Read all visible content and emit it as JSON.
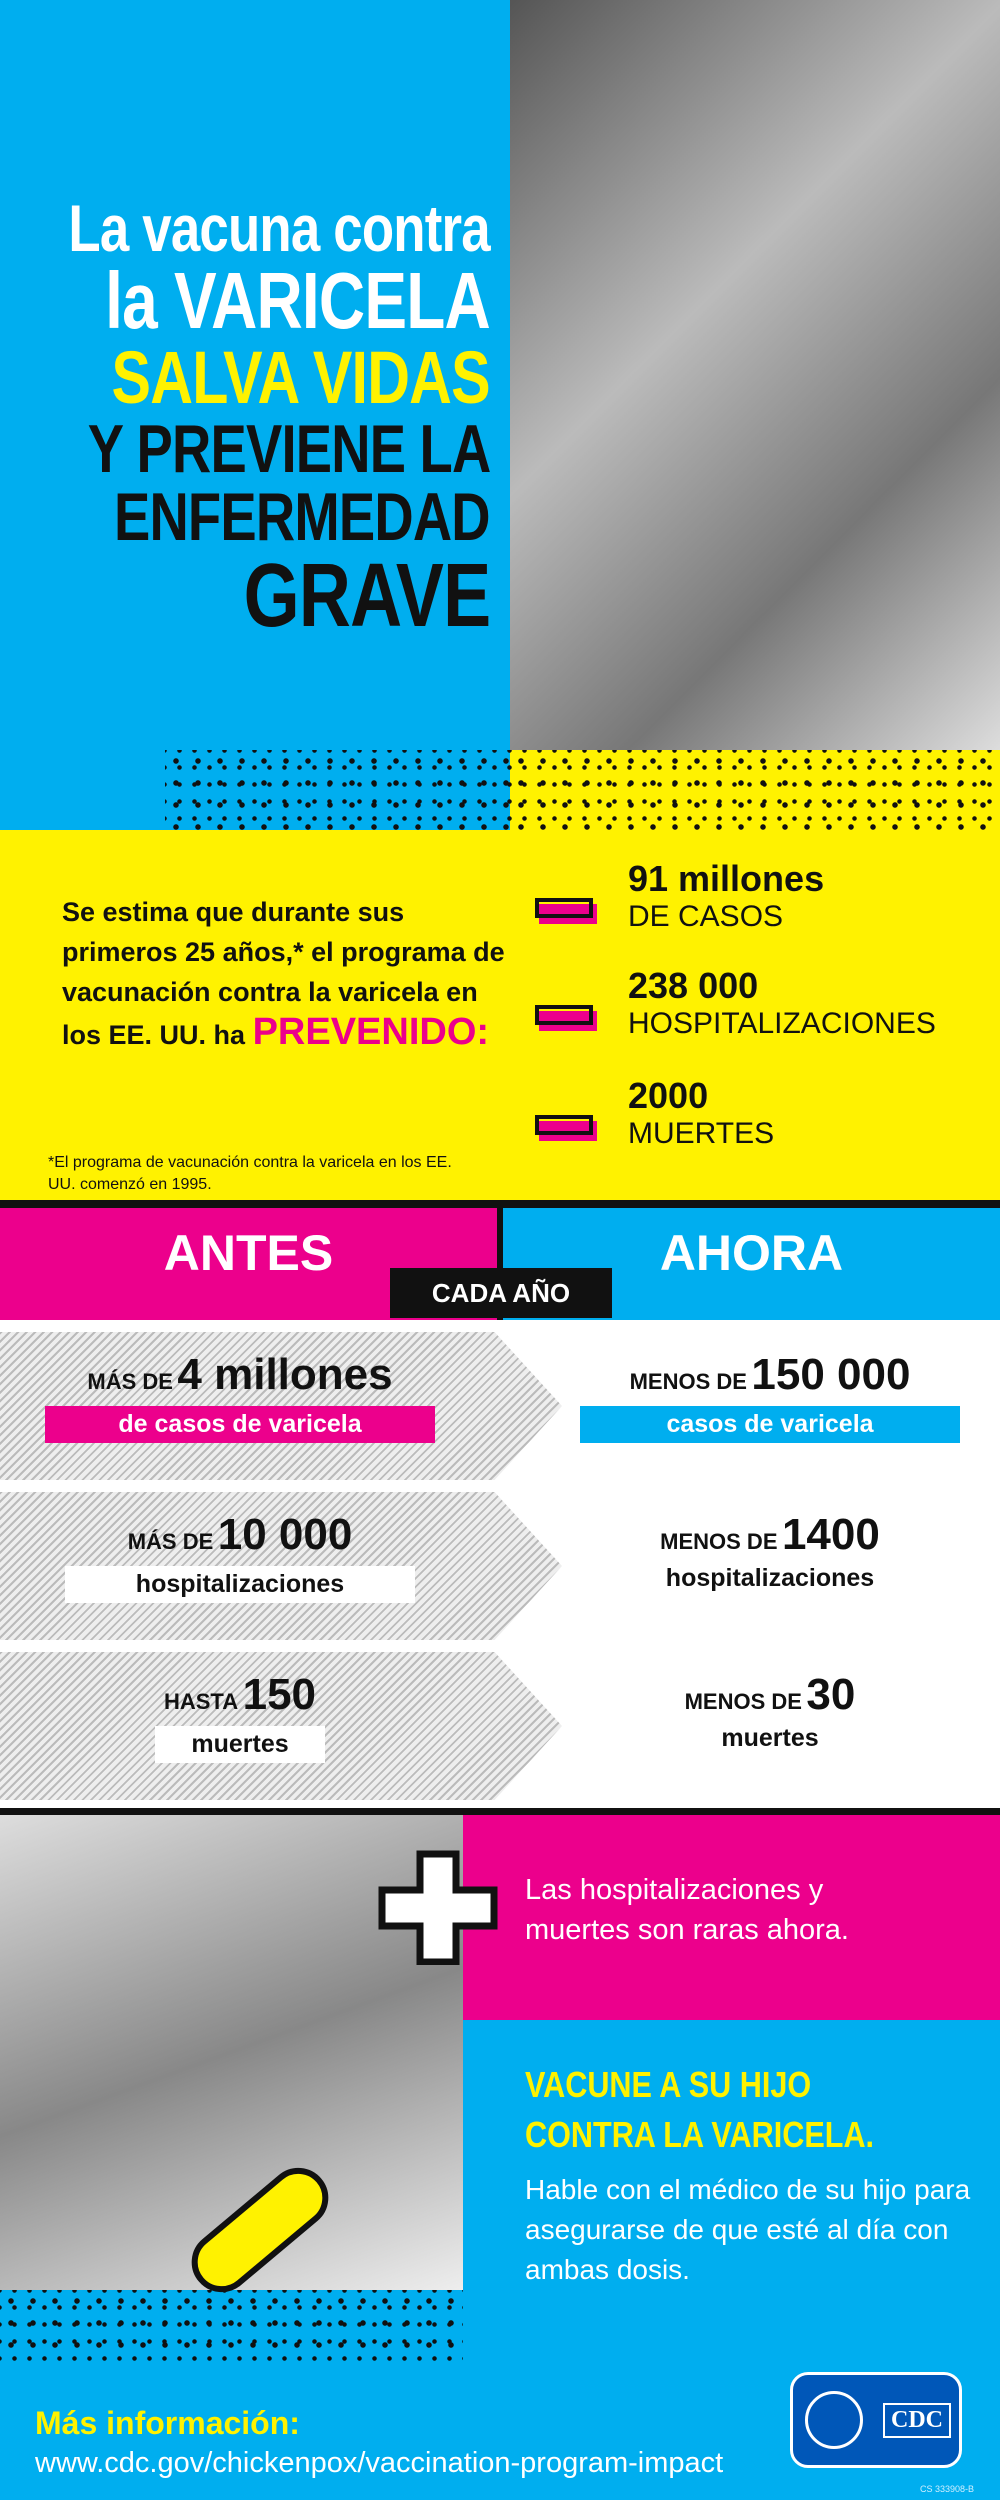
{
  "hero": {
    "line1": "La vacuna contra",
    "line2": "la VARICELA",
    "line3": "SALVA VIDAS",
    "line4": "Y PREVIENE LA",
    "line5": "ENFERMEDAD",
    "line6": "GRAVE"
  },
  "intro": {
    "text": "Se estima que durante sus primeros 25 años,* el programa de vacunación contra la varicela en los EE. UU. ha",
    "highlight": "PREVENIDO:",
    "footnote": "*El programa de vacunación contra la varicela en los EE. UU. comenzó en 1995."
  },
  "stats": [
    {
      "number": "91 millones",
      "label": "DE CASOS"
    },
    {
      "number": "238 000",
      "label": "HOSPITALIZACIONES"
    },
    {
      "number": "2000",
      "label": "MUERTES"
    }
  ],
  "compare": {
    "before": "ANTES",
    "after": "AHORA",
    "period": "CADA AÑO",
    "rows": [
      {
        "before_prefix": "MÁS DE",
        "before_num": "4 millones",
        "before_label": "de casos de varicela",
        "after_prefix": "MENOS DE",
        "after_num": "150 000",
        "after_label": "casos de varicela"
      },
      {
        "before_prefix": "MÁS DE",
        "before_num": "10 000",
        "before_label": "hospitalizaciones",
        "after_prefix": "MENOS DE",
        "after_num": "1400",
        "after_label": "hospitalizaciones"
      },
      {
        "before_prefix": "HASTA",
        "before_num": "150",
        "before_label": "muertes",
        "after_prefix": "MENOS DE",
        "after_num": "30",
        "after_label": "muertes"
      }
    ]
  },
  "rare": "Las hospitalizaciones y muertes son raras ahora.",
  "cta": {
    "title1": "VACUNE A SU HIJO",
    "title2": "CONTRA LA VARICELA.",
    "body": "Hable con el médico de su hijo para asegurarse de que esté al día con ambas dosis."
  },
  "footer": {
    "more": "Más información:",
    "url": "www.cdc.gov/chickenpox/vaccination-program-impact",
    "logo": "CDC",
    "code": "CS 333908-B"
  },
  "colors": {
    "blue": "#00aeef",
    "pink": "#ec008c",
    "yellow": "#fff200"
  }
}
